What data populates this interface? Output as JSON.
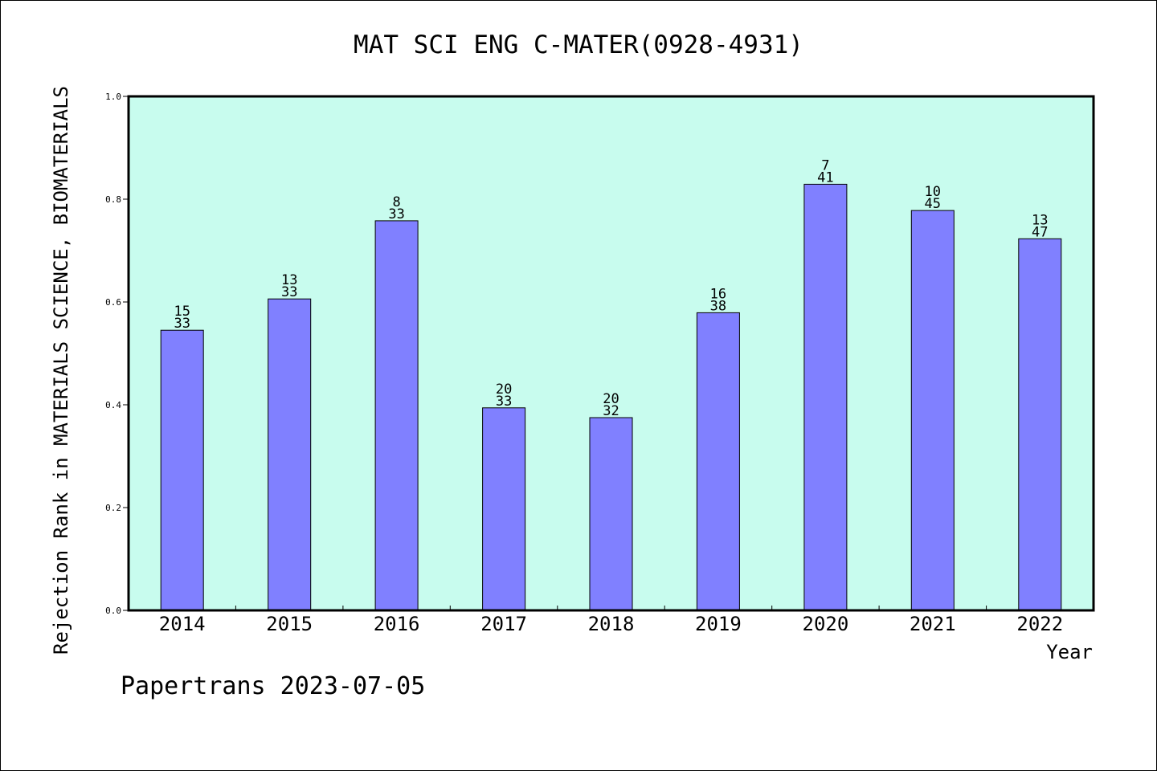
{
  "chart_data": {
    "type": "bar",
    "title": "MAT SCI ENG C-MATER(0928-4931)",
    "xlabel": "Year",
    "ylabel": "Rejection Rank in MATERIALS SCIENCE, BIOMATERIALS",
    "ylim": [
      0,
      1.0
    ],
    "yticks": [
      "0.0",
      "0.2",
      "0.4",
      "0.6",
      "0.8",
      "1.0"
    ],
    "categories": [
      "2014",
      "2015",
      "2016",
      "2017",
      "2018",
      "2019",
      "2020",
      "2021",
      "2022"
    ],
    "values": [
      0.545,
      0.606,
      0.758,
      0.394,
      0.375,
      0.579,
      0.829,
      0.778,
      0.723
    ],
    "rank": [
      "15",
      "13",
      "8",
      "20",
      "20",
      "16",
      "7",
      "10",
      "13"
    ],
    "total": [
      "33",
      "33",
      "33",
      "33",
      "32",
      "38",
      "41",
      "45",
      "47"
    ],
    "grid": false,
    "legend": "none",
    "colors": {
      "plot_background": "#c8fcee",
      "bar_fill": "#8080ff",
      "bar_stroke": "#000000"
    }
  },
  "footer": {
    "credit": "Papertrans 2023-07-05"
  }
}
